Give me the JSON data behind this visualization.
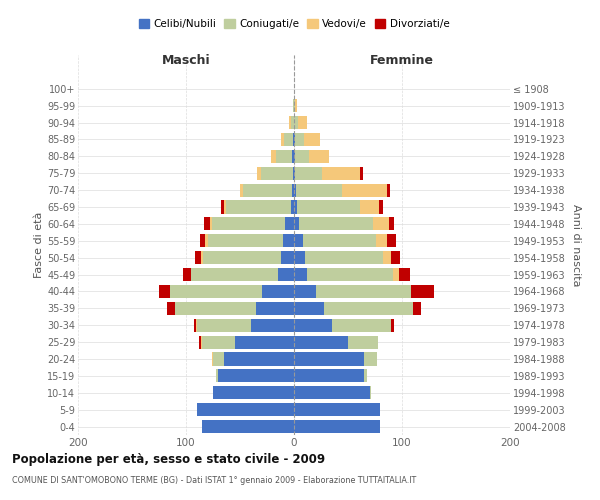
{
  "age_groups": [
    "0-4",
    "5-9",
    "10-14",
    "15-19",
    "20-24",
    "25-29",
    "30-34",
    "35-39",
    "40-44",
    "45-49",
    "50-54",
    "55-59",
    "60-64",
    "65-69",
    "70-74",
    "75-79",
    "80-84",
    "85-89",
    "90-94",
    "95-99",
    "100+"
  ],
  "birth_years": [
    "2004-2008",
    "1999-2003",
    "1994-1998",
    "1989-1993",
    "1984-1988",
    "1979-1983",
    "1974-1978",
    "1969-1973",
    "1964-1968",
    "1959-1963",
    "1954-1958",
    "1949-1953",
    "1944-1948",
    "1939-1943",
    "1934-1938",
    "1929-1933",
    "1924-1928",
    "1919-1923",
    "1914-1918",
    "1909-1913",
    "≤ 1908"
  ],
  "males": {
    "celibi": [
      85,
      90,
      75,
      70,
      65,
      55,
      40,
      35,
      30,
      15,
      12,
      10,
      8,
      3,
      2,
      1,
      2,
      1,
      0,
      0,
      0
    ],
    "coniugati": [
      0,
      0,
      0,
      2,
      10,
      30,
      50,
      75,
      85,
      80,
      72,
      70,
      68,
      60,
      45,
      30,
      15,
      8,
      3,
      1,
      0
    ],
    "vedovi": [
      0,
      0,
      0,
      0,
      1,
      1,
      1,
      0,
      0,
      0,
      2,
      2,
      2,
      2,
      3,
      3,
      4,
      3,
      2,
      0,
      0
    ],
    "divorziati": [
      0,
      0,
      0,
      0,
      0,
      2,
      2,
      8,
      10,
      8,
      6,
      5,
      5,
      3,
      0,
      0,
      0,
      0,
      0,
      0,
      0
    ]
  },
  "females": {
    "nubili": [
      80,
      80,
      70,
      65,
      65,
      50,
      35,
      28,
      20,
      12,
      10,
      8,
      5,
      3,
      2,
      1,
      1,
      1,
      0,
      0,
      0
    ],
    "coniugate": [
      0,
      0,
      1,
      3,
      12,
      28,
      55,
      82,
      88,
      80,
      72,
      68,
      68,
      58,
      42,
      25,
      13,
      8,
      4,
      1,
      0
    ],
    "vedove": [
      0,
      0,
      0,
      0,
      0,
      0,
      0,
      0,
      0,
      5,
      8,
      10,
      15,
      18,
      42,
      35,
      18,
      15,
      8,
      2,
      0
    ],
    "divorziate": [
      0,
      0,
      0,
      0,
      0,
      0,
      3,
      8,
      22,
      10,
      8,
      8,
      5,
      3,
      3,
      3,
      0,
      0,
      0,
      0,
      0
    ]
  },
  "colors": {
    "celibi_nubili": "#4472C4",
    "coniugati": "#BFCE9E",
    "vedovi": "#F5C87A",
    "divorziati": "#C00000"
  },
  "title": "Popolazione per età, sesso e stato civile - 2009",
  "subtitle": "COMUNE DI SANT'OMOBONO TERME (BG) - Dati ISTAT 1° gennaio 2009 - Elaborazione TUTTAITALIA.IT",
  "xlabel_left": "Maschi",
  "xlabel_right": "Femmine",
  "ylabel_left": "Fasce di età",
  "ylabel_right": "Anni di nascita",
  "xlim": 200,
  "background_color": "#ffffff",
  "grid_color": "#cccccc"
}
